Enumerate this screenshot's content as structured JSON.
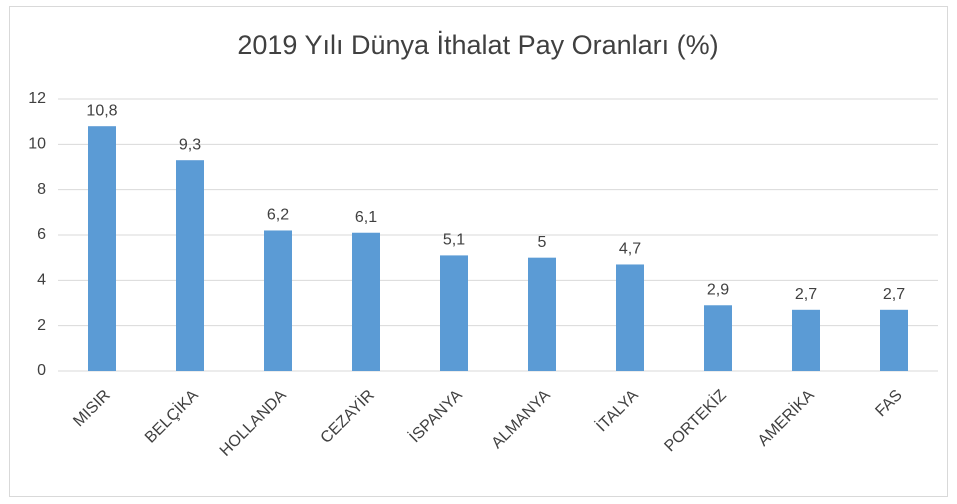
{
  "chart_data": {
    "type": "bar",
    "title": "2019 Yılı Dünya İthalat Pay Oranları (%)",
    "categories": [
      "MISIR",
      "BELÇİKA",
      "HOLLANDA",
      "CEZAYİR",
      "İSPANYA",
      "ALMANYA",
      "İTALYA",
      "PORTEKİZ",
      "AMERİKA",
      "FAS"
    ],
    "values": [
      10.8,
      9.3,
      6.2,
      6.1,
      5.1,
      5,
      4.7,
      2.9,
      2.7,
      2.7
    ],
    "value_labels": [
      "10,8",
      "9,3",
      "6,2",
      "6,1",
      "5,1",
      "5",
      "4,7",
      "2,9",
      "2,7",
      "2,7"
    ],
    "color": "#5b9bd5",
    "ylim": [
      0,
      12
    ],
    "yticks": [
      0,
      2,
      4,
      6,
      8,
      10,
      12
    ],
    "grid": true
  }
}
